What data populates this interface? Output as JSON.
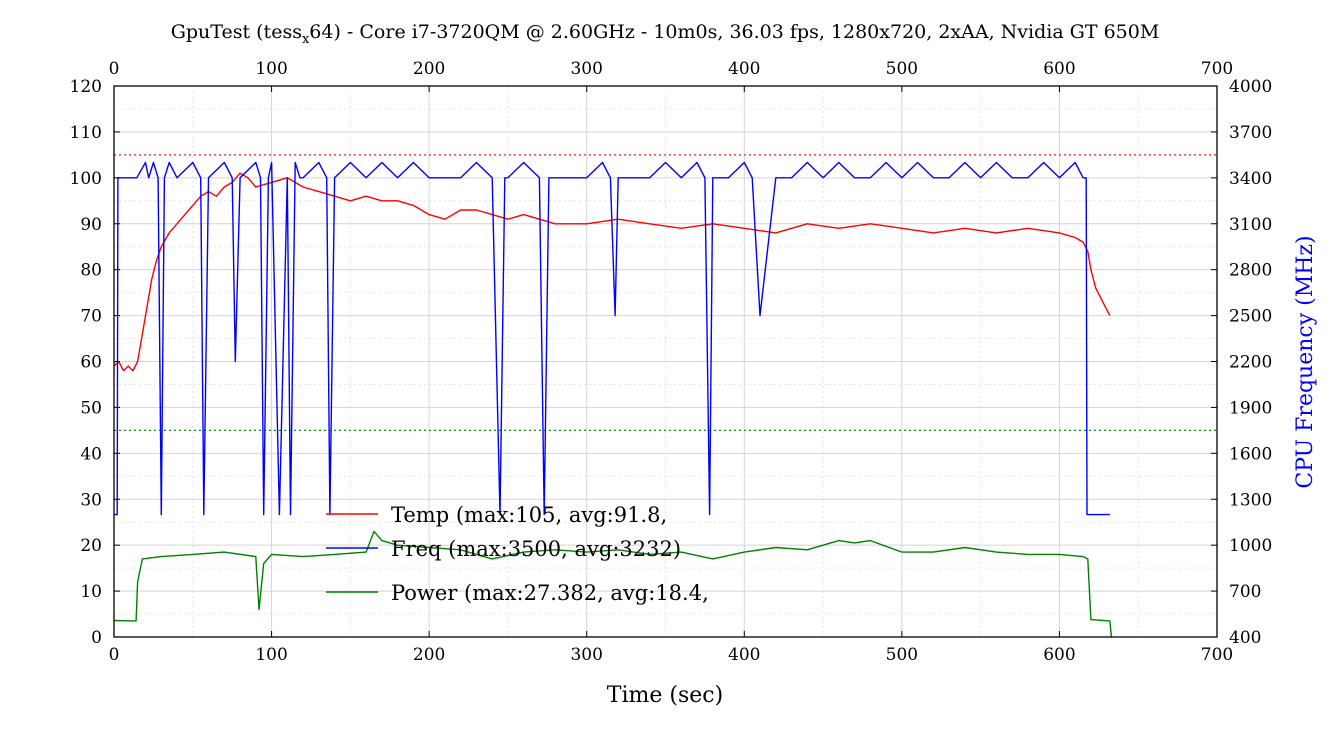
{
  "chart_data": {
    "type": "line",
    "title": {
      "prefix": "GpuTest (tess",
      "subscript": "x",
      "suffix": "64) - Core i7-3720QM @ 2.60GHz - 10m0s, 36.03 fps, 1280x720, 2xAA, Nvidia GT 650M"
    },
    "xlabel": "Time (sec)",
    "y2label": "CPU Frequency (MHz)",
    "xlim": [
      0,
      700
    ],
    "ylim": [
      0,
      120
    ],
    "y2lim": [
      400,
      4000
    ],
    "x_ticks": [
      "0",
      "100",
      "200",
      "300",
      "400",
      "500",
      "600",
      "700"
    ],
    "x2_ticks": [
      "0",
      "100",
      "200",
      "300",
      "400",
      "500",
      "600",
      "700"
    ],
    "y_ticks": [
      "0",
      "10",
      "20",
      "30",
      "40",
      "50",
      "60",
      "70",
      "80",
      "90",
      "100",
      "110",
      "120"
    ],
    "y2_ticks": [
      "400",
      "700",
      "1000",
      "1300",
      "1600",
      "1900",
      "2200",
      "2500",
      "2800",
      "3100",
      "3400",
      "3700",
      "4000"
    ],
    "grid": true,
    "legend_position": "bottom-left",
    "reference_lines": [
      {
        "axis": "y",
        "value": 105,
        "color": "#e8201c",
        "style": "dotted"
      },
      {
        "axis": "y",
        "value": 45,
        "color": "#138a13",
        "style": "dotted"
      }
    ],
    "series": [
      {
        "name": "Temp (max:105, avg:91.8,",
        "axis": "left",
        "color": "#ff0000",
        "x": [
          0,
          3,
          6,
          9,
          12,
          15,
          18,
          21,
          24,
          27,
          30,
          35,
          40,
          45,
          50,
          55,
          60,
          65,
          70,
          75,
          80,
          85,
          90,
          100,
          110,
          120,
          130,
          140,
          150,
          160,
          170,
          180,
          190,
          200,
          210,
          220,
          230,
          240,
          250,
          260,
          270,
          280,
          300,
          320,
          340,
          360,
          380,
          400,
          420,
          440,
          460,
          480,
          500,
          520,
          540,
          560,
          580,
          600,
          610,
          615,
          618,
          620,
          623,
          626,
          629,
          632
        ],
        "y": [
          59,
          60,
          58,
          59,
          58,
          60,
          66,
          72,
          78,
          82,
          85,
          88,
          90,
          92,
          94,
          96,
          97,
          96,
          98,
          99,
          101,
          100,
          98,
          99,
          100,
          98,
          97,
          96,
          95,
          96,
          95,
          95,
          94,
          92,
          91,
          93,
          93,
          92,
          91,
          92,
          91,
          90,
          90,
          91,
          90,
          89,
          90,
          89,
          88,
          90,
          89,
          90,
          89,
          88,
          89,
          88,
          89,
          88,
          87,
          86,
          84,
          80,
          76,
          74,
          72,
          70
        ]
      },
      {
        "name": "Freq (max:3500, avg:3232)",
        "axis": "right",
        "color": "#0000ff",
        "x": [
          0,
          2,
          2.5,
          14,
          14.5,
          20,
          22,
          25,
          28,
          30,
          32,
          35,
          40,
          50,
          55,
          57,
          60,
          70,
          75,
          77,
          80,
          90,
          93,
          95,
          98,
          100,
          105,
          110,
          112,
          115,
          118,
          120,
          130,
          135,
          137,
          140,
          150,
          160,
          170,
          180,
          190,
          200,
          210,
          220,
          230,
          240,
          245,
          248,
          250,
          260,
          270,
          273,
          276,
          280,
          300,
          310,
          315,
          318,
          320,
          340,
          350,
          360,
          370,
          375,
          378,
          380,
          390,
          400,
          405,
          410,
          420,
          430,
          440,
          450,
          460,
          470,
          480,
          490,
          500,
          510,
          520,
          530,
          540,
          550,
          560,
          570,
          580,
          590,
          600,
          610,
          615,
          617,
          617.5,
          620,
          632
        ],
        "y": [
          1200,
          1200,
          3400,
          3400,
          3400,
          3500,
          3400,
          3500,
          3400,
          1200,
          3400,
          3500,
          3400,
          3500,
          3400,
          1200,
          3400,
          3500,
          3400,
          2200,
          3400,
          3500,
          3400,
          1200,
          3400,
          3500,
          1200,
          3400,
          1200,
          3500,
          3400,
          3400,
          3500,
          3400,
          1200,
          3400,
          3500,
          3400,
          3500,
          3400,
          3500,
          3400,
          3400,
          3400,
          3500,
          3400,
          1200,
          3400,
          3400,
          3500,
          3400,
          1200,
          3400,
          3400,
          3400,
          3500,
          3400,
          2500,
          3400,
          3400,
          3500,
          3400,
          3500,
          3400,
          1200,
          3400,
          3400,
          3500,
          3400,
          2500,
          3400,
          3400,
          3500,
          3400,
          3500,
          3400,
          3400,
          3500,
          3400,
          3500,
          3400,
          3400,
          3500,
          3400,
          3500,
          3400,
          3400,
          3500,
          3400,
          3500,
          3400,
          3400,
          1200,
          1200,
          1200
        ]
      },
      {
        "name": "Power (max:27.382, avg:18.4,",
        "axis": "left",
        "color": "#008000",
        "x": [
          0,
          10,
          14,
          15,
          18,
          30,
          50,
          70,
          90,
          92,
          95,
          100,
          120,
          140,
          160,
          165,
          170,
          180,
          200,
          220,
          230,
          240,
          260,
          280,
          300,
          320,
          340,
          360,
          380,
          400,
          420,
          440,
          460,
          470,
          480,
          500,
          520,
          540,
          560,
          580,
          600,
          615,
          618,
          620,
          632,
          633
        ],
        "y": [
          3.6,
          3.5,
          3.5,
          12,
          17,
          17.5,
          18,
          18.5,
          17.5,
          6,
          16,
          18,
          17.5,
          18,
          18.5,
          23,
          21,
          20,
          19.5,
          19,
          18,
          17,
          18.5,
          19,
          18.5,
          19,
          18,
          18.5,
          17,
          18.5,
          19.5,
          19,
          21,
          20.5,
          21,
          18.5,
          18.5,
          19.5,
          18.5,
          18,
          18,
          17.5,
          17,
          3.8,
          3.5,
          0
        ]
      }
    ]
  }
}
